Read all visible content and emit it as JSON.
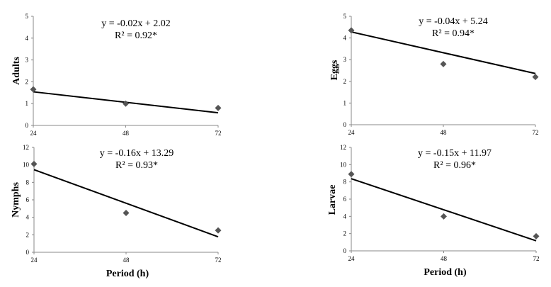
{
  "chart_data": [
    {
      "type": "scatter",
      "ylabel": "Adults",
      "xlabel": "",
      "x": [
        24,
        48,
        72
      ],
      "y": [
        1.65,
        1.0,
        0.8
      ],
      "xticks": [
        "24",
        "48",
        "72"
      ],
      "yticks": [
        "0",
        "1",
        "2",
        "3",
        "4",
        "5"
      ],
      "ylim": [
        0,
        5
      ],
      "trendline": {
        "slope": -0.02,
        "intercept": 2.02
      },
      "equation": "y = -0.02x + 2.02",
      "r2": "R² = 0.92*",
      "marker_color": "#555555"
    },
    {
      "type": "scatter",
      "ylabel": "Eggs",
      "xlabel": "",
      "x": [
        24,
        48,
        72
      ],
      "y": [
        4.35,
        2.8,
        2.2
      ],
      "xticks": [
        "24",
        "48",
        "72"
      ],
      "yticks": [
        "0",
        "1",
        "2",
        "3",
        "4",
        "5"
      ],
      "ylim": [
        0,
        5
      ],
      "trendline": {
        "slope": -0.04,
        "intercept": 5.24
      },
      "equation": "y = -0.04x + 5.24",
      "r2": "R² = 0.94*",
      "marker_color": "#555555"
    },
    {
      "type": "scatter",
      "ylabel": "Nymphs",
      "xlabel": "Period (h)",
      "x": [
        24,
        48,
        72
      ],
      "y": [
        10.1,
        4.5,
        2.5
      ],
      "xticks": [
        "24",
        "48",
        "72"
      ],
      "yticks": [
        "0",
        "2",
        "4",
        "6",
        "8",
        "10",
        "12"
      ],
      "ylim": [
        0,
        12
      ],
      "trendline": {
        "slope": -0.16,
        "intercept": 13.29
      },
      "equation": "y = -0.16x + 13.29",
      "r2": "R² = 0.93*",
      "marker_color": "#555555"
    },
    {
      "type": "scatter",
      "ylabel": "Larvae",
      "xlabel": "Period (h)",
      "x": [
        24,
        48,
        72
      ],
      "y": [
        8.9,
        4.0,
        1.7
      ],
      "xticks": [
        "24",
        "48",
        "72"
      ],
      "yticks": [
        "0",
        "2",
        "4",
        "6",
        "8",
        "10",
        "12"
      ],
      "ylim": [
        0,
        12
      ],
      "trendline": {
        "slope": -0.15,
        "intercept": 11.97
      },
      "equation": "y = -0.15x + 11.97",
      "r2": "R² = 0.96*",
      "marker_color": "#555555"
    }
  ]
}
